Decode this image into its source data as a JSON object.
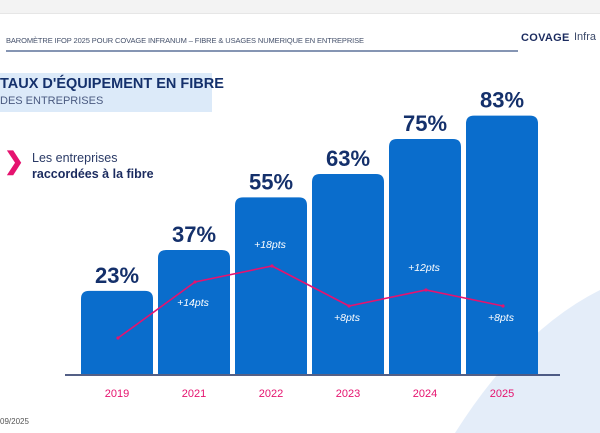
{
  "header": {
    "text": "BAROMÈTRE IFOP 2025  POUR COVAGE INFRANUM – FIBRE & USAGES NUMERIQUE EN ENTREPRISE",
    "logos": [
      "COVAGE",
      "Infra"
    ]
  },
  "title": {
    "line1": "TAUX D'ÉQUIPEMENT EN FIBRE",
    "line2": "DES ENTREPRISES"
  },
  "legend": {
    "line1": "Les entreprises",
    "line2": "raccordées à la fibre",
    "marker_icon": "chevron-right-icon"
  },
  "footer": "09/2025",
  "chart_data": {
    "type": "bar",
    "categories": [
      "2019",
      "2021",
      "2022",
      "2023",
      "2024",
      "2025"
    ],
    "values": [
      23,
      37,
      55,
      63,
      75,
      83
    ],
    "value_labels": [
      "23%",
      "37%",
      "55%",
      "63%",
      "75%",
      "83%"
    ],
    "line_series": {
      "type": "line",
      "values": [
        0,
        14,
        18,
        8,
        12,
        8
      ],
      "labels": [
        "",
        "+14pts",
        "+18pts",
        "+8pts",
        "+12pts",
        "+8pts"
      ]
    },
    "colors": {
      "bar": "#0a6dcc",
      "line": "#e5136f",
      "value_label": "#14306b",
      "year_label": "#e5136f"
    },
    "grid": false
  }
}
